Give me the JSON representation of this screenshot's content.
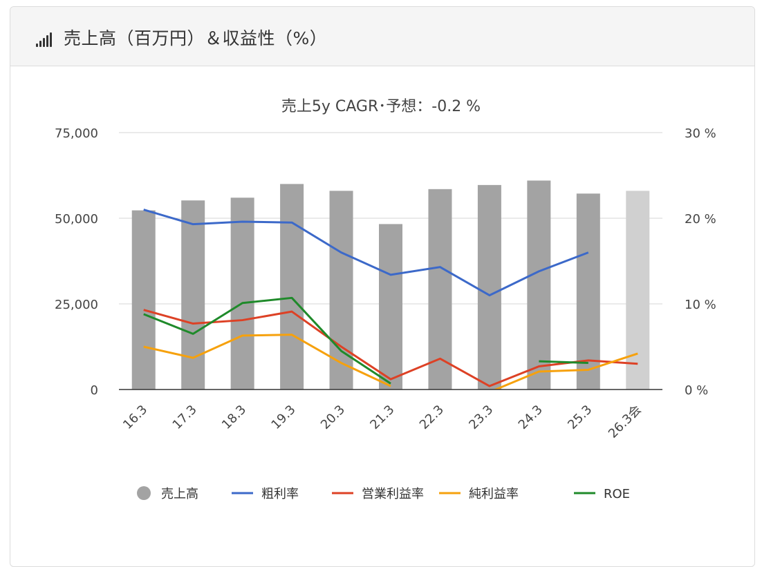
{
  "header": {
    "title": "売上高（百万円）＆収益性（%）",
    "icon": "signal-bars-icon"
  },
  "chart_data": {
    "type": "bar",
    "title": "売上5y CAGR･予想：-0.2 %",
    "categories": [
      "16.3",
      "17.3",
      "18.3",
      "19.3",
      "20.3",
      "21.3",
      "22.3",
      "23.3",
      "24.3",
      "25.3",
      "26.3会"
    ],
    "y_left": {
      "min": 0,
      "max": 75000,
      "ticks": [
        "0",
        "25,000",
        "50,000",
        "75,000"
      ],
      "tick_values": [
        0,
        25000,
        50000,
        75000
      ]
    },
    "y_right": {
      "min": 0,
      "max": 30,
      "ticks": [
        "0 %",
        "10 %",
        "20 %",
        "30 %"
      ],
      "tick_values": [
        0,
        10,
        20,
        30
      ]
    },
    "grid": true,
    "legend_position": "bottom",
    "series": [
      {
        "name": "売上高",
        "type": "bar",
        "axis": "left",
        "color": "#a3a3a3",
        "forecast_color": "#d0d0d0",
        "values": [
          52300,
          55200,
          56000,
          60000,
          58000,
          48300,
          58500,
          59700,
          61000,
          57200,
          58000
        ]
      },
      {
        "name": "粗利率",
        "type": "line",
        "axis": "right",
        "color": "#3c69c9",
        "values": [
          21.0,
          19.3,
          19.6,
          19.5,
          16.0,
          13.4,
          14.3,
          11.0,
          13.8,
          16.0,
          null
        ]
      },
      {
        "name": "営業利益率",
        "type": "line",
        "axis": "right",
        "color": "#dd4125",
        "values": [
          9.3,
          7.7,
          8.1,
          9.1,
          5.0,
          1.2,
          3.6,
          0.4,
          2.7,
          3.4,
          3.0
        ]
      },
      {
        "name": "純利益率",
        "type": "line",
        "axis": "right",
        "color": "#f6a10d",
        "values": [
          5.0,
          3.7,
          6.3,
          6.4,
          3.1,
          0.4,
          null,
          -0.3,
          2.1,
          2.3,
          4.2
        ]
      },
      {
        "name": "ROE",
        "type": "line",
        "axis": "right",
        "color": "#1f8a2a",
        "values": [
          8.8,
          6.5,
          10.1,
          10.7,
          4.5,
          0.7,
          null,
          null,
          3.3,
          3.1,
          null
        ]
      }
    ]
  }
}
